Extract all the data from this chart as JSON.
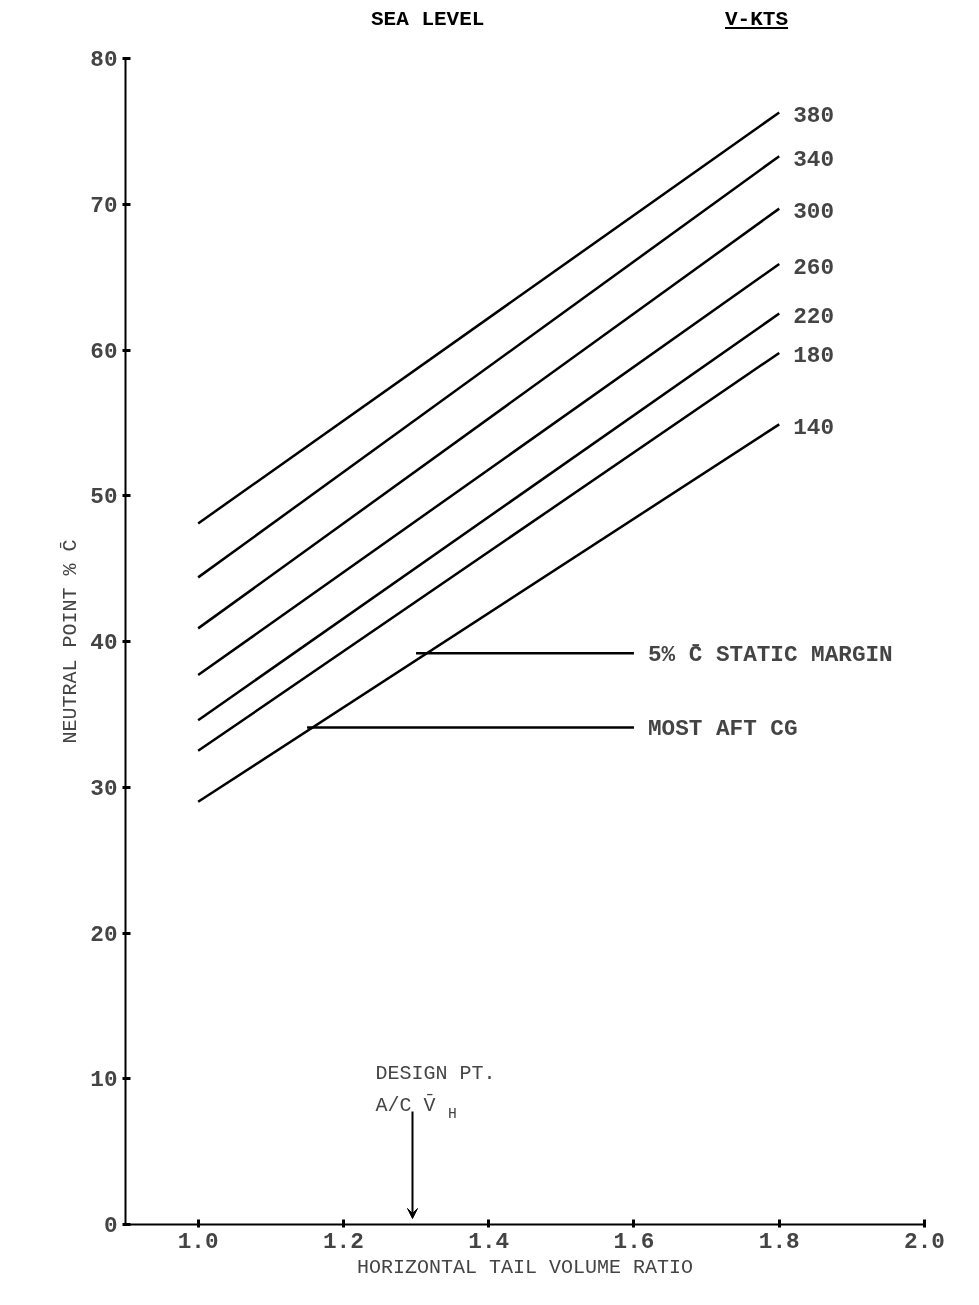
{
  "chart_data": {
    "type": "line",
    "title": "SEA LEVEL",
    "legend_title": "V-KTS",
    "xlabel": "HORIZONTAL TAIL VOLUME RATIO",
    "ylabel": "NEUTRAL POINT % C̄",
    "xlim": [
      0.9,
      2.0
    ],
    "xticks": [
      {
        "value": 1.0,
        "label": "1.0"
      },
      1.2,
      1.4,
      1.6,
      1.8,
      {
        "value": 2.0,
        "label": "2.0"
      }
    ],
    "ylim": [
      0,
      80
    ],
    "yticks": [
      0,
      10,
      20,
      30,
      40,
      50,
      60,
      70,
      80
    ],
    "grid": false,
    "legend": false,
    "marker": "none",
    "line_style": "solid",
    "series": [
      {
        "name": "380",
        "color": "#000000",
        "x": [
          1.0,
          1.8
        ],
        "values": [
          48.1,
          76.3
        ]
      },
      {
        "name": "340",
        "color": "#000000",
        "x": [
          1.0,
          1.8
        ],
        "values": [
          44.4,
          73.3
        ]
      },
      {
        "name": "300",
        "color": "#000000",
        "x": [
          1.0,
          1.8
        ],
        "values": [
          40.9,
          69.7
        ]
      },
      {
        "name": "260",
        "color": "#000000",
        "x": [
          1.0,
          1.8
        ],
        "values": [
          37.7,
          65.9
        ]
      },
      {
        "name": "220",
        "color": "#000000",
        "x": [
          1.0,
          1.8
        ],
        "values": [
          34.6,
          62.5
        ]
      },
      {
        "name": "180",
        "color": "#000000",
        "x": [
          1.0,
          1.8
        ],
        "values": [
          32.5,
          59.8
        ]
      },
      {
        "name": "140",
        "color": "#000000",
        "x": [
          1.0,
          1.8
        ],
        "values": [
          29.0,
          54.9
        ]
      },
      {
        "name": "5% C̄ STATIC MARGIN",
        "color": "#000000",
        "x": [
          1.3,
          1.6
        ],
        "values": [
          39.2,
          39.2
        ]
      },
      {
        "name": "MOST AFT CG",
        "color": "#000000",
        "x": [
          1.15,
          1.6
        ],
        "values": [
          34.1,
          34.1
        ]
      }
    ],
    "annotations": [
      "DESIGN PT.\nA/C V̄$_{H}$"
    ]
  }
}
